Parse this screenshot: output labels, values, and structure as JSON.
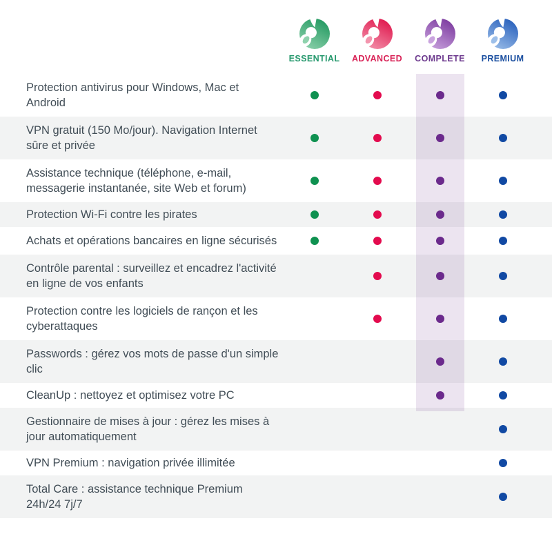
{
  "page": {
    "type": "product-plan-comparison-table",
    "plans": [
      {
        "name": "ESSENTIAL",
        "label_color": "#27996e",
        "dot_color": "#0f9150",
        "icon": "panda-logo",
        "icon_dark": "#249a62",
        "icon_light": "#8fd2ad"
      },
      {
        "name": "ADVANCED",
        "label_color": "#d92357",
        "dot_color": "#e30b4e",
        "icon": "panda-logo",
        "icon_dark": "#e01a4f",
        "icon_light": "#f394ad"
      },
      {
        "name": "COMPLETE",
        "label_color": "#6d3a8e",
        "dot_color": "#6b2a8c",
        "icon": "panda-logo",
        "icon_dark": "#7e3da0",
        "icon_light": "#c9a3de"
      },
      {
        "name": "PREMIUM",
        "label_color": "#1b4fa0",
        "dot_color": "#1149a3",
        "icon": "panda-logo",
        "icon_dark": "#2a62bd",
        "icon_light": "#9dbfe9"
      }
    ],
    "features": [
      {
        "text": "Protection antivirus pour Windows, Mac et Android",
        "included": [
          true,
          true,
          true,
          true
        ]
      },
      {
        "text": "VPN gratuit (150 Mo/jour). Navigation Internet sûre et privée",
        "included": [
          true,
          true,
          true,
          true
        ]
      },
      {
        "text": "Assistance technique (téléphone, e-mail, messagerie instantanée, site Web et forum)",
        "included": [
          true,
          true,
          true,
          true
        ]
      },
      {
        "text": "Protection Wi-Fi contre les pirates",
        "included": [
          true,
          true,
          true,
          true
        ]
      },
      {
        "text": "Achats et opérations bancaires en ligne sécurisés",
        "included": [
          true,
          true,
          true,
          true
        ]
      },
      {
        "text": "Contrôle parental : surveillez et encadrez l'activité en ligne de vos enfants",
        "included": [
          false,
          true,
          true,
          true
        ]
      },
      {
        "text": "Protection contre les logiciels de rançon et les cyberattaques",
        "included": [
          false,
          true,
          true,
          true
        ]
      },
      {
        "text": "Passwords : gérez vos mots de passe d'un simple clic",
        "included": [
          false,
          false,
          true,
          true
        ]
      },
      {
        "text": "CleanUp : nettoyez et optimisez votre PC",
        "included": [
          false,
          false,
          true,
          true
        ]
      },
      {
        "text": "Gestionnaire de mises à jour : gérez les mises à jour automatiquement",
        "included": [
          false,
          false,
          false,
          true
        ]
      },
      {
        "text": "VPN Premium : navigation privée illimitée",
        "included": [
          false,
          false,
          false,
          true
        ]
      },
      {
        "text": "Total Care : assistance technique Premium 24h/24 7j/7",
        "included": [
          false,
          false,
          false,
          true
        ]
      }
    ],
    "colors": {
      "text": "#414d56",
      "row_alt": "#f2f3f3",
      "highlight_hex": "#6d2b8c",
      "highlight_opacity": 0.13
    },
    "highlighted_plan": "COMPLETE"
  }
}
